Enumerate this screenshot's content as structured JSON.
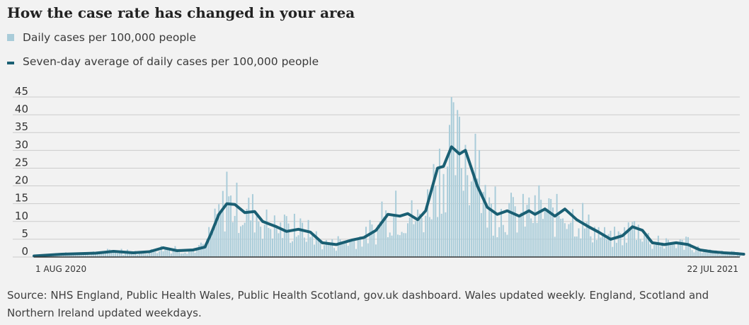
{
  "title": "How the case rate has changed in your area",
  "legend": {
    "daily": "Daily cases per 100,000 people",
    "average": "Seven-day average of daily cases per 100,000 people"
  },
  "source": "Source: NHS England, Public Health Wales, Public Health Scotland, gov.uk dashboard. Wales updated weekly. England, Scotland and Northern Ireland updated weekdays.",
  "colors": {
    "bars": "#a9ccd9",
    "line": "#1a5f73",
    "grid": "#cccccc",
    "axis": "#333333"
  },
  "chart_data": {
    "type": "bar+line",
    "x_start": "1 AUG 2020",
    "x_end": "22 JUL 2021",
    "x_tick_labels": [
      "1 AUG 2020",
      "22 JUL 2021"
    ],
    "ylim": [
      0,
      45
    ],
    "yticks": [
      0,
      5,
      10,
      15,
      20,
      25,
      30,
      35,
      40,
      45
    ],
    "grid": true,
    "series": [
      {
        "name": "Seven-day average of daily cases per 100,000 people",
        "kind": "line",
        "points": [
          [
            "2020-08-01",
            0.3
          ],
          [
            "2020-08-15",
            0.8
          ],
          [
            "2020-09-01",
            1.1
          ],
          [
            "2020-09-10",
            1.6
          ],
          [
            "2020-09-20",
            1.2
          ],
          [
            "2020-09-28",
            1.5
          ],
          [
            "2020-10-05",
            2.6
          ],
          [
            "2020-10-12",
            1.8
          ],
          [
            "2020-10-20",
            2.0
          ],
          [
            "2020-10-26",
            2.8
          ],
          [
            "2020-10-29",
            6.5
          ],
          [
            "2020-11-02",
            12.0
          ],
          [
            "2020-11-06",
            15.0
          ],
          [
            "2020-11-10",
            14.8
          ],
          [
            "2020-11-15",
            12.5
          ],
          [
            "2020-11-20",
            12.8
          ],
          [
            "2020-11-24",
            10.0
          ],
          [
            "2020-12-01",
            8.5
          ],
          [
            "2020-12-06",
            7.2
          ],
          [
            "2020-12-12",
            7.8
          ],
          [
            "2020-12-18",
            7.0
          ],
          [
            "2020-12-24",
            4.0
          ],
          [
            "2020-12-31",
            3.5
          ],
          [
            "2021-01-08",
            4.8
          ],
          [
            "2021-01-14",
            5.5
          ],
          [
            "2021-01-20",
            7.5
          ],
          [
            "2021-01-26",
            12.0
          ],
          [
            "2021-02-01",
            11.5
          ],
          [
            "2021-02-05",
            12.2
          ],
          [
            "2021-02-10",
            10.5
          ],
          [
            "2021-02-14",
            13.0
          ],
          [
            "2021-02-20",
            25.0
          ],
          [
            "2021-02-23",
            25.5
          ],
          [
            "2021-02-27",
            31.0
          ],
          [
            "2021-03-03",
            29.0
          ],
          [
            "2021-03-06",
            30.0
          ],
          [
            "2021-03-12",
            20.0
          ],
          [
            "2021-03-17",
            14.0
          ],
          [
            "2021-03-22",
            12.0
          ],
          [
            "2021-03-27",
            13.0
          ],
          [
            "2021-04-02",
            11.5
          ],
          [
            "2021-04-07",
            13.0
          ],
          [
            "2021-04-10",
            12.0
          ],
          [
            "2021-04-15",
            13.5
          ],
          [
            "2021-04-20",
            11.5
          ],
          [
            "2021-04-25",
            13.5
          ],
          [
            "2021-05-01",
            10.5
          ],
          [
            "2021-05-07",
            8.5
          ],
          [
            "2021-05-12",
            7.0
          ],
          [
            "2021-05-18",
            5.0
          ],
          [
            "2021-05-24",
            6.0
          ],
          [
            "2021-05-29",
            8.5
          ],
          [
            "2021-06-03",
            7.5
          ],
          [
            "2021-06-08",
            4.0
          ],
          [
            "2021-06-14",
            3.5
          ],
          [
            "2021-06-20",
            4.0
          ],
          [
            "2021-06-26",
            3.5
          ],
          [
            "2021-07-02",
            2.0
          ],
          [
            "2021-07-08",
            1.5
          ],
          [
            "2021-07-14",
            1.2
          ],
          [
            "2021-07-20",
            1.0
          ],
          [
            "2021-07-24",
            0.8
          ]
        ]
      }
    ]
  }
}
